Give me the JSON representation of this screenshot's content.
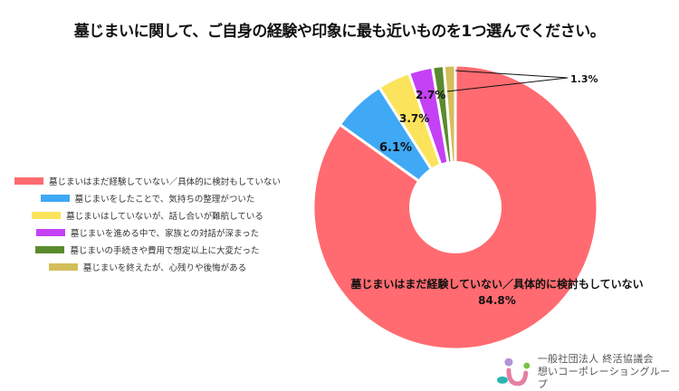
{
  "title": "墓じまいに関して、ご自身の経験や印象に最も近いものを1つ選んでください。",
  "chart_data": {
    "type": "pie",
    "variant": "donut",
    "title": "墓じまいに関して、ご自身の経験や印象に最も近いものを1つ選んでください。",
    "categories": [
      "墓じまいはまだ経験していない／具体的に検討もしていない",
      "墓じまいをしたことで、気持ちの整理がついた",
      "墓じまいはしていないが、話し合いが難航している",
      "墓じまいを進める中で、家族との対話が深まった",
      "墓じまいの手続きや費用で想定以上に大変だった",
      "墓じまいを終えたが、心残りや後悔がある"
    ],
    "values": [
      84.8,
      6.1,
      3.7,
      2.7,
      1.3,
      1.3
    ],
    "value_labels": [
      "84.8%",
      "6.1%",
      "3.7%",
      "2.7%",
      "1.3%",
      "1.3%"
    ],
    "colors": [
      "#FF6B70",
      "#3FA9F5",
      "#FBE45B",
      "#C541F5",
      "#5A8A2E",
      "#D4BE5A"
    ],
    "legend_position": "left",
    "direction": "counterclockwise from top"
  },
  "legend": [
    {
      "label": "墓じまいはまだ経験していない／具体的に検討もしていない",
      "color": "#FF6B70"
    },
    {
      "label": "墓じまいをしたことで、気持ちの整理がついた",
      "color": "#3FA9F5"
    },
    {
      "label": "墓じまいはしていないが、話し合いが難航している",
      "color": "#FBE45B"
    },
    {
      "label": "墓じまいを進める中で、家族との対話が深まった",
      "color": "#C541F5"
    },
    {
      "label": "墓じまいの手続きや費用で想定以上に大変だった",
      "color": "#5A8A2E"
    },
    {
      "label": "墓じまいを終えたが、心残りや後悔がある",
      "color": "#D4BE5A"
    }
  ],
  "labels": {
    "main_name": "墓じまいはまだ経験していない／具体的に検討もしていない",
    "main_value": "84.8%",
    "blue": "6.1%",
    "yellow": "3.7%",
    "purple": "2.7%",
    "small": "1.3%"
  },
  "logo": {
    "line1": "一般社団法人 終活協議会",
    "line2": "想いコーポレーショングループ"
  }
}
